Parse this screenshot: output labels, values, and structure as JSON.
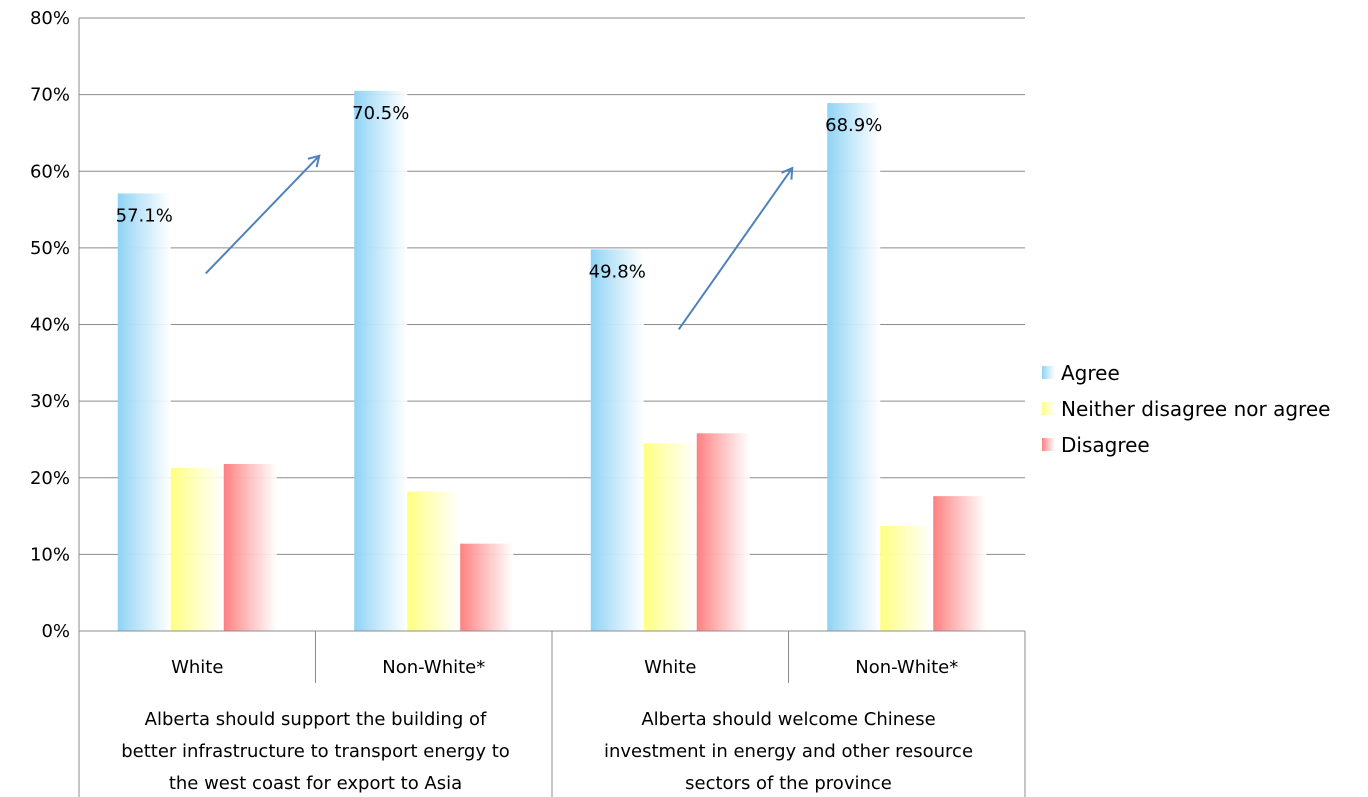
{
  "chart_data": {
    "type": "bar",
    "ylim": [
      0,
      80
    ],
    "yticks": [
      "0%",
      "10%",
      "20%",
      "30%",
      "40%",
      "50%",
      "60%",
      "70%",
      "80%"
    ],
    "grid": true,
    "legend_position": "right",
    "categories": [
      "White",
      "Non-White*",
      "White",
      "Non-White*"
    ],
    "groups": [
      {
        "lines": [
          "Alberta should support the building of",
          "better infrastructure to transport energy to",
          "the west coast for export to Asia"
        ]
      },
      {
        "lines": [
          "Alberta should welcome Chinese",
          "investment in energy and other resource",
          "sectors of the province"
        ]
      }
    ],
    "series": [
      {
        "name": "Agree",
        "values": [
          57.1,
          70.5,
          49.8,
          68.9
        ],
        "labels": [
          "57.1%",
          "70.5%",
          "49.8%",
          "68.9%"
        ],
        "color": "#8fd3f5"
      },
      {
        "name": "Neither disagree nor agree",
        "values": [
          21.3,
          18.2,
          24.5,
          13.7
        ],
        "color": "#ffff80"
      },
      {
        "name": "Disagree",
        "values": [
          21.8,
          11.4,
          25.8,
          17.6
        ],
        "color": "#ff8080"
      }
    ],
    "annotations": [
      "arrow",
      "arrow"
    ],
    "arrow_color": "#4f81bd"
  }
}
